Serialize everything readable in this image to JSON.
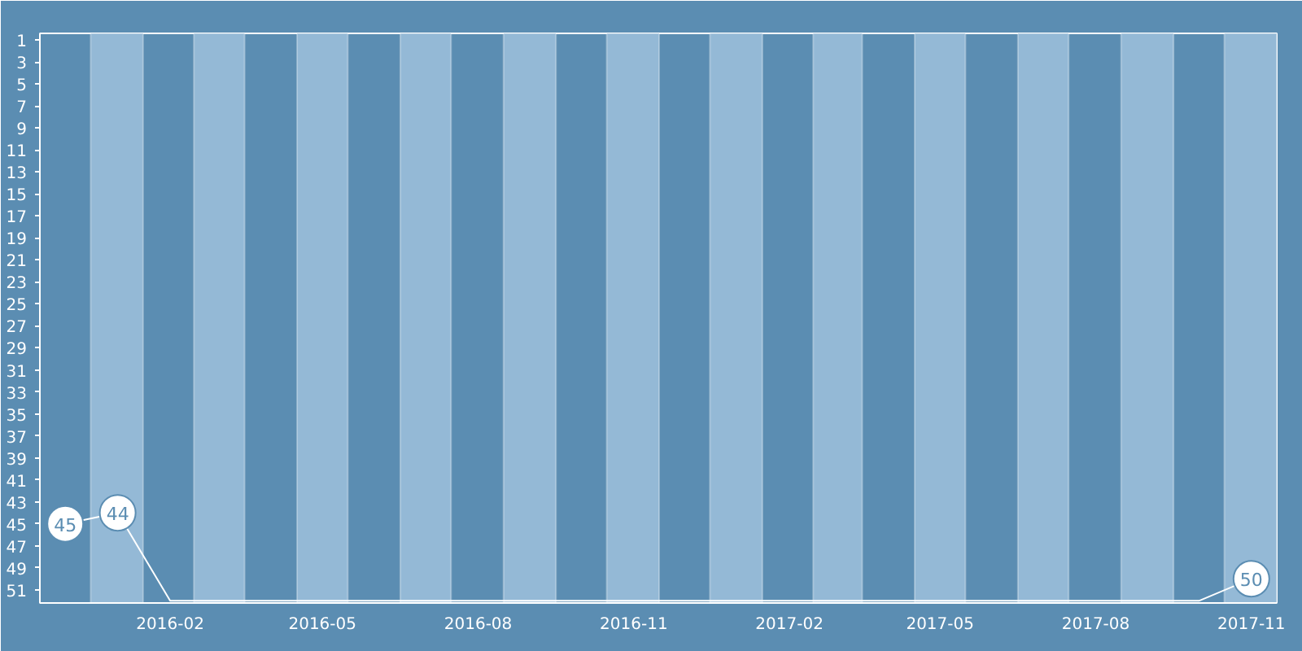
{
  "chart_data": {
    "type": "line",
    "x": [
      "2015-12",
      "2016-01",
      "2016-02",
      "2016-03",
      "2016-04",
      "2016-05",
      "2016-06",
      "2016-07",
      "2016-08",
      "2016-09",
      "2016-10",
      "2016-11",
      "2016-12",
      "2017-01",
      "2017-02",
      "2017-03",
      "2017-04",
      "2017-05",
      "2017-06",
      "2017-07",
      "2017-08",
      "2017-09",
      "2017-10",
      "2017-11"
    ],
    "series": [
      {
        "color": "#ffffff",
        "values": [
          45,
          44,
          52,
          52,
          52,
          52,
          52,
          52,
          52,
          52,
          52,
          52,
          52,
          52,
          52,
          52,
          52,
          52,
          52,
          52,
          52,
          52,
          52,
          50
        ],
        "value_labels": [
          "45",
          "44",
          null,
          null,
          null,
          null,
          null,
          null,
          null,
          null,
          null,
          null,
          null,
          null,
          null,
          null,
          null,
          null,
          null,
          null,
          null,
          null,
          null,
          "50"
        ]
      }
    ],
    "xlim": [
      "2015-11-16",
      "2017-11-16"
    ],
    "xticks": [
      {
        "value": "2016-02",
        "label": "2016-02"
      },
      {
        "value": "2016-05",
        "label": "2016-05"
      },
      {
        "value": "2016-08",
        "label": "2016-08"
      },
      {
        "value": "2016-11",
        "label": "2016-11"
      },
      {
        "value": "2017-02",
        "label": "2017-02"
      },
      {
        "value": "2017-05",
        "label": "2017-05"
      },
      {
        "value": "2017-08",
        "label": "2017-08"
      },
      {
        "value": "2017-11",
        "label": "2017-11"
      }
    ],
    "bands": [
      {
        "axis": "x",
        "from": "2015-12-16",
        "to": "2016-01-16",
        "color": "#94b9d6"
      },
      {
        "axis": "x",
        "from": "2016-02-15",
        "to": "2016-03-16",
        "color": "#94b9d6"
      },
      {
        "axis": "x",
        "from": "2016-04-16",
        "to": "2016-05-16",
        "color": "#94b9d6"
      },
      {
        "axis": "x",
        "from": "2016-06-16",
        "to": "2016-07-16",
        "color": "#94b9d6"
      },
      {
        "axis": "x",
        "from": "2016-08-16",
        "to": "2016-09-16",
        "color": "#94b9d6"
      },
      {
        "axis": "x",
        "from": "2016-10-16",
        "to": "2016-11-16",
        "color": "#94b9d6"
      },
      {
        "axis": "x",
        "from": "2016-12-16",
        "to": "2017-01-16",
        "color": "#94b9d6"
      },
      {
        "axis": "x",
        "from": "2017-02-15",
        "to": "2017-03-16",
        "color": "#94b9d6"
      },
      {
        "axis": "x",
        "from": "2017-04-16",
        "to": "2017-05-16",
        "color": "#94b9d6"
      },
      {
        "axis": "x",
        "from": "2017-06-16",
        "to": "2017-07-16",
        "color": "#94b9d6"
      },
      {
        "axis": "x",
        "from": "2017-08-16",
        "to": "2017-09-16",
        "color": "#94b9d6"
      },
      {
        "axis": "x",
        "from": "2017-10-16",
        "to": "2017-11-16",
        "color": "#94b9d6"
      }
    ],
    "ylim": [
      52.2,
      0.4
    ],
    "yticks": [
      1,
      3,
      5,
      7,
      9,
      11,
      13,
      15,
      17,
      19,
      21,
      23,
      25,
      27,
      29,
      31,
      33,
      35,
      37,
      39,
      41,
      43,
      45,
      47,
      49,
      51
    ],
    "grid": false,
    "marker": "none",
    "line_style": "solid"
  }
}
